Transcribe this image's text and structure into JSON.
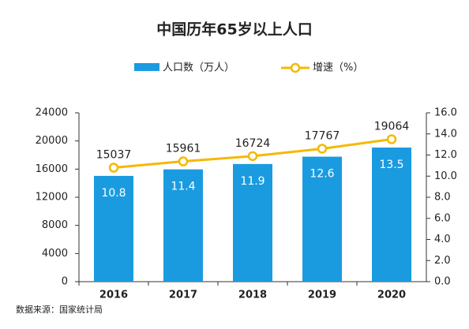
{
  "chart_data": {
    "type": "bar-line",
    "title": "中国历年65岁以上人口",
    "categories": [
      "2016",
      "2017",
      "2018",
      "2019",
      "2020"
    ],
    "series": [
      {
        "name": "人口数（万人）",
        "color": "#1a9be0",
        "values": [
          15037,
          15961,
          16724,
          17767,
          19064
        ]
      },
      {
        "name": "增速（%）",
        "color": "#f5b800",
        "axis": "y2",
        "values": [
          10.8,
          11.4,
          11.9,
          12.6,
          13.5
        ]
      }
    ],
    "ylim": [
      0,
      24000
    ],
    "yticks": [
      0,
      4000,
      8000,
      12000,
      16000,
      20000,
      24000
    ],
    "y2lim": [
      0,
      16
    ],
    "y2ticks": [
      {
        "value": 0,
        "label": "0.0"
      },
      {
        "value": 2,
        "label": "2.0"
      },
      {
        "value": 4,
        "label": "4.0"
      },
      {
        "value": 6,
        "label": "6.0"
      },
      {
        "value": 8,
        "label": "8.0"
      },
      {
        "value": 10,
        "label": "10.0"
      },
      {
        "value": 12,
        "label": "12.0"
      },
      {
        "value": 14,
        "label": "14.0"
      },
      {
        "value": 16,
        "label": "16.0"
      }
    ],
    "source": "数据来源：国家统计局"
  }
}
